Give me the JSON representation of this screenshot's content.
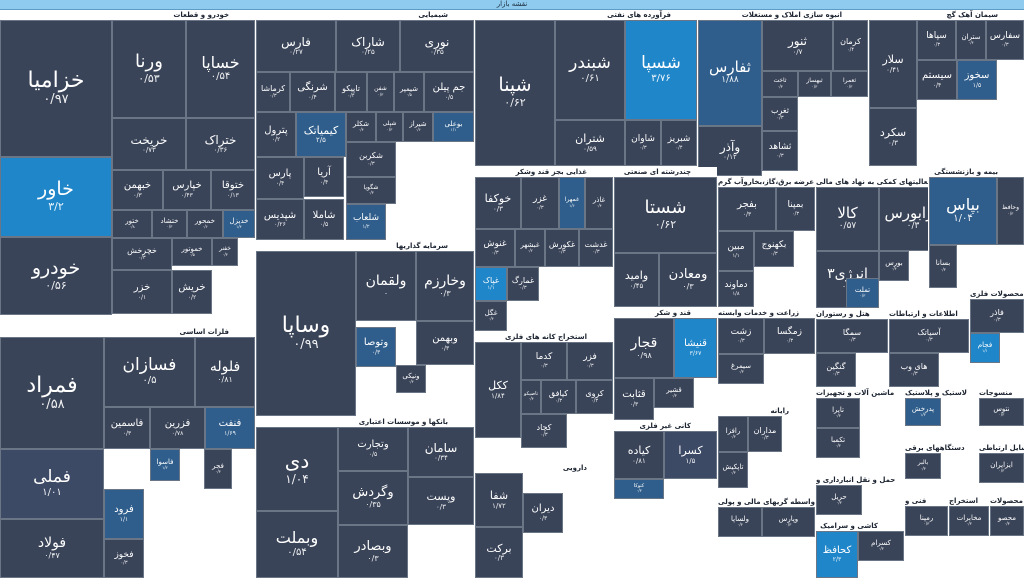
{
  "window": {
    "title": "نقشه بازار"
  },
  "colors": {
    "neutral": "#3a4458",
    "up_small": "#3d4a66",
    "up_medium": "#2f5e8c",
    "up_large": "#1f86c9"
  },
  "sectors": [
    {
      "id": "auto",
      "title": "خودرو و قطعات",
      "tiles": [
        {
          "name": "خزامیا",
          "value": "۰/۹۷",
          "level": "neutral"
        },
        {
          "name": "خاور",
          "value": "۳/۲",
          "level": "up3"
        },
        {
          "name": "خودرو",
          "value": "۰/۵۶",
          "level": "neutral"
        },
        {
          "name": "ورنا",
          "value": "۰/۵۳",
          "level": "neutral"
        },
        {
          "name": "خساپا",
          "value": "۰/۵۴",
          "level": "neutral"
        },
        {
          "name": "خریخت",
          "value": "۰/۷۳",
          "level": "neutral"
        },
        {
          "name": "ختراک",
          "value": "۰/۳۶",
          "level": "neutral"
        },
        {
          "name": "خبهمن",
          "value": "۰/۳",
          "level": "neutral"
        },
        {
          "name": "خپارس",
          "value": "۰/۴۳",
          "level": "neutral"
        },
        {
          "name": "ختوقا",
          "value": "۰/۱۳",
          "level": "neutral"
        },
        {
          "name": "ختور",
          "value": "۰/۸",
          "level": "neutral"
        },
        {
          "name": "ختشاد",
          "value": "۰/۳",
          "level": "neutral"
        },
        {
          "name": "خمحور",
          "value": "۰/۶",
          "level": "neutral"
        },
        {
          "name": "خدیزل",
          "value": "۱/۴",
          "level": "up2"
        },
        {
          "name": "خچرخش",
          "value": "۰/۳",
          "level": "neutral"
        },
        {
          "name": "خموتور",
          "value": "۰/۵",
          "level": "neutral"
        },
        {
          "name": "خفنر",
          "value": "۰/۳",
          "level": "neutral"
        },
        {
          "name": "خزر",
          "value": "۰/۱",
          "level": "neutral"
        },
        {
          "name": "خریش",
          "value": "۰/۲",
          "level": "neutral"
        }
      ]
    },
    {
      "id": "chem",
      "title": "شیمیایی",
      "tiles": [
        {
          "name": "فارس",
          "value": "۰/۲۷",
          "level": "neutral"
        },
        {
          "name": "شاراک",
          "value": "۰/۲۵",
          "level": "neutral"
        },
        {
          "name": "نوری",
          "value": "۰/۳۵",
          "level": "neutral"
        },
        {
          "name": "کرماشا",
          "value": "۰/۳",
          "level": "neutral"
        },
        {
          "name": "شرنگی",
          "value": "۰/۴",
          "level": "neutral"
        },
        {
          "name": "تاپیکو",
          "value": "۰/۴",
          "level": "neutral"
        },
        {
          "name": "شفن",
          "value": "۰/۳",
          "level": "neutral"
        },
        {
          "name": "شیمپر",
          "value": "۰/۵",
          "level": "neutral"
        },
        {
          "name": "جم پیلن",
          "value": "۰/۵",
          "level": "neutral"
        },
        {
          "name": "پترول",
          "value": "۰/۲",
          "level": "neutral"
        },
        {
          "name": "کیمیاتک",
          "value": "۲/۵",
          "level": "up2"
        },
        {
          "name": "شکلر",
          "value": "۰/۴",
          "level": "neutral"
        },
        {
          "name": "شپلی",
          "value": "۰/۳",
          "level": "neutral"
        },
        {
          "name": "شیراز",
          "value": "۰/۶",
          "level": "neutral"
        },
        {
          "name": "بوعلی",
          "value": "۱/۱",
          "level": "up2"
        },
        {
          "name": "پارس",
          "value": "۰/۴",
          "level": "neutral"
        },
        {
          "name": "آریا",
          "value": "۰/۴",
          "level": "neutral"
        },
        {
          "name": "شکربن",
          "value": "۰/۳",
          "level": "neutral"
        },
        {
          "name": "شگویا",
          "value": "۰/۳",
          "level": "neutral"
        },
        {
          "name": "شپدیس",
          "value": "۰/۲۶",
          "level": "neutral"
        },
        {
          "name": "شاملا",
          "value": "۰/۵",
          "level": "neutral"
        },
        {
          "name": "شلعاب",
          "value": "۱/۲",
          "level": "up2"
        }
      ]
    },
    {
      "id": "refinery",
      "title": "فرآورده های نفتی",
      "tiles": [
        {
          "name": "شپنا",
          "value": "۰/۶۲",
          "level": "neutral"
        },
        {
          "name": "شبندر",
          "value": "۰/۶۱",
          "level": "neutral"
        },
        {
          "name": "شسپا",
          "value": "۳/۷۶",
          "level": "up3"
        },
        {
          "name": "شتران",
          "value": "۰/۵۹",
          "level": "neutral"
        },
        {
          "name": "شاوان",
          "value": "۰/۳",
          "level": "neutral"
        },
        {
          "name": "شبریز",
          "value": "۰/۴",
          "level": "neutral"
        }
      ]
    },
    {
      "id": "realestate",
      "title": "انبوه سازی املاک و مستغلات",
      "tiles": [
        {
          "name": "ثفارس",
          "value": "۱/۸۸",
          "level": "up2"
        },
        {
          "name": "ثنور",
          "value": "۰/۷",
          "level": "neutral"
        },
        {
          "name": "کرمان",
          "value": "۰/۴",
          "level": "neutral"
        },
        {
          "name": "وآذر",
          "value": "۰/۱۲",
          "level": "neutral"
        },
        {
          "name": "ثاخت",
          "value": "۰/۳",
          "level": "neutral"
        },
        {
          "name": "ثبهساز",
          "value": "۰/۳",
          "level": "neutral"
        },
        {
          "name": "ثعمرا",
          "value": "۰/۳",
          "level": "neutral"
        },
        {
          "name": "ثغرب",
          "value": "۰/۳",
          "level": "neutral"
        },
        {
          "name": "ثشاهد",
          "value": "۰/۳",
          "level": "neutral"
        }
      ]
    },
    {
      "id": "cement",
      "title": "سیمان آهک گچ",
      "tiles": [
        {
          "name": "سلار",
          "value": "۰/۴۱",
          "level": "neutral"
        },
        {
          "name": "سپاها",
          "value": "۰/۳",
          "level": "neutral"
        },
        {
          "name": "ستران",
          "value": "۰/۴",
          "level": "neutral"
        },
        {
          "name": "سفارس",
          "value": "۰/۳",
          "level": "neutral"
        },
        {
          "name": "سکرد",
          "value": "۰/۳",
          "level": "neutral"
        },
        {
          "name": "سیستم",
          "value": "۰/۴",
          "level": "neutral"
        },
        {
          "name": "سصفها",
          "value": "۰/۳",
          "level": "neutral"
        },
        {
          "name": "سخوز",
          "value": "۱/۵",
          "level": "up2"
        }
      ]
    },
    {
      "id": "food",
      "title": "غذایی بجز قند وشکر",
      "tiles": [
        {
          "name": "خوکفا",
          "value": "۰/۳",
          "level": "neutral"
        },
        {
          "name": "غزر",
          "value": "۰/۳",
          "level": "neutral"
        },
        {
          "name": "غمهرا",
          "value": "۱/۶",
          "level": "up2"
        },
        {
          "name": "غاذر",
          "value": "۰/۴",
          "level": "neutral"
        },
        {
          "name": "غنوش",
          "value": "۰/۳",
          "level": "neutral"
        },
        {
          "name": "غبشهر",
          "value": "۰/۲",
          "level": "neutral"
        },
        {
          "name": "غکورش",
          "value": "۰/۳",
          "level": "neutral"
        },
        {
          "name": "غدشت",
          "value": "۰/۳",
          "level": "neutral"
        },
        {
          "name": "غپاک",
          "value": "۱/۱",
          "level": "up3"
        },
        {
          "name": "غمارگ",
          "value": "۰/۳",
          "level": "neutral"
        },
        {
          "name": "غگل",
          "value": "۰/۴",
          "level": "neutral"
        }
      ]
    },
    {
      "id": "multi",
      "title": "چندرشته ای صنعتی",
      "tiles": [
        {
          "name": "شستا",
          "value": "۰/۶۲",
          "level": "neutral"
        },
        {
          "name": "وامید",
          "value": "۰/۴۵",
          "level": "neutral"
        },
        {
          "name": "ومعادن",
          "value": "۰/۳",
          "level": "neutral"
        }
      ]
    },
    {
      "id": "utility",
      "title": "عرضه برق،گاز،بخاروآب گرم",
      "tiles": [
        {
          "name": "بفجر",
          "value": "۰/۳",
          "level": "neutral"
        },
        {
          "name": "بمپنا",
          "value": "۰/۳",
          "level": "neutral"
        },
        {
          "name": "مبین",
          "value": "۱/۱",
          "level": "neutral"
        },
        {
          "name": "بکهنوج",
          "value": "۰/۳",
          "level": "neutral"
        },
        {
          "name": "دماوند",
          "value": "۱/۸",
          "level": "neutral"
        }
      ]
    },
    {
      "id": "finance",
      "title": "فعالیتهای کمکی به نهاد های مالی",
      "tiles": [
        {
          "name": "کالا",
          "value": "۰/۵۷",
          "level": "neutral"
        },
        {
          "name": "فرابورس",
          "value": "۰/۳",
          "level": "neutral"
        },
        {
          "name": "بورس",
          "value": "۰/۴",
          "level": "neutral"
        },
        {
          "name": "انرژی۳",
          "value": "۰/۳",
          "level": "neutral"
        },
        {
          "name": "تملت",
          "value": "۰/۳",
          "level": "up2"
        }
      ]
    },
    {
      "id": "insurance",
      "title": "بیمه و بازنشستگی",
      "tiles": [
        {
          "name": "بپاس",
          "value": "۱/۰۴",
          "level": "up2"
        },
        {
          "name": "وحافظ",
          "value": "۰/۳",
          "level": "neutral"
        },
        {
          "name": "بسانا",
          "value": "۰/۳",
          "level": "neutral"
        }
      ]
    },
    {
      "id": "invest",
      "title": "سرمایه گذاریها",
      "tiles": [
        {
          "name": "وساپا",
          "value": "۰/۹۹",
          "level": "neutral"
        },
        {
          "name": "ولقمان",
          "value": "۰",
          "level": "neutral"
        },
        {
          "name": "وخارزم",
          "value": "۰/۳",
          "level": "neutral"
        },
        {
          "name": "وبهمن",
          "value": "۰/۳",
          "level": "neutral"
        },
        {
          "name": "ونیکی",
          "value": "۰/۴",
          "level": "neutral"
        },
        {
          "name": "وتوصا",
          "value": "۰/۳",
          "level": "up2"
        }
      ]
    },
    {
      "id": "metals",
      "title": "فلزات اساسی",
      "tiles": [
        {
          "name": "فمراد",
          "value": "۰/۵۸",
          "level": "neutral"
        },
        {
          "name": "فملی",
          "value": "۱/۰۱",
          "level": "up1"
        },
        {
          "name": "فولاد",
          "value": "۰/۴۷",
          "level": "neutral"
        },
        {
          "name": "فسازان",
          "value": "۰/۵",
          "level": "neutral"
        },
        {
          "name": "فلوله",
          "value": "۰/۸۱",
          "level": "neutral"
        },
        {
          "name": "فنفت",
          "value": "۱/۶۹",
          "level": "up2"
        },
        {
          "name": "فزرین",
          "value": "۰/۷۸",
          "level": "neutral"
        },
        {
          "name": "فاسمین",
          "value": "۰/۳",
          "level": "neutral"
        },
        {
          "name": "فاسوا",
          "value": "۱/۲",
          "level": "up2"
        },
        {
          "name": "فجر",
          "value": "۰/۳",
          "level": "neutral"
        },
        {
          "name": "فرود",
          "value": "۱/۱",
          "level": "up2"
        },
        {
          "name": "فخوز",
          "value": "۰/۳",
          "level": "neutral"
        }
      ]
    },
    {
      "id": "banks",
      "title": "بانکها و موسسات اعتباری",
      "tiles": [
        {
          "name": "دی",
          "value": "۱/۰۴",
          "level": "neutral"
        },
        {
          "name": "وتجارت",
          "value": "۰/۵",
          "level": "neutral"
        },
        {
          "name": "سامان",
          "value": "۰/۳۴",
          "level": "neutral"
        },
        {
          "name": "وگردش",
          "value": "۰/۳۵",
          "level": "neutral"
        },
        {
          "name": "وبملت",
          "value": "۰/۵۴",
          "level": "neutral"
        },
        {
          "name": "وبصادر",
          "value": "۰/۳",
          "level": "neutral"
        },
        {
          "name": "وپست",
          "value": "۰/۳",
          "level": "neutral"
        }
      ]
    },
    {
      "id": "mining",
      "title": "استخراج کانه های فلزی",
      "tiles": [
        {
          "name": "ککل",
          "value": "۱/۸۴",
          "level": "neutral"
        },
        {
          "name": "کدما",
          "value": "۰/۳",
          "level": "neutral"
        },
        {
          "name": "فزر",
          "value": "۰/۳",
          "level": "neutral"
        },
        {
          "name": "کیافق",
          "value": "۰/۳",
          "level": "neutral"
        },
        {
          "name": "کروی",
          "value": "۰/۳",
          "level": "neutral"
        },
        {
          "name": "کچاد",
          "value": "۰/۳",
          "level": "neutral"
        },
        {
          "name": "تاصیکو",
          "value": "۰/۴",
          "level": "neutral"
        }
      ]
    },
    {
      "id": "sugar",
      "title": "قند و شکر",
      "tiles": [
        {
          "name": "قجار",
          "value": "۰/۹۸",
          "level": "neutral"
        },
        {
          "name": "قنیشا",
          "value": "۳/۶۷",
          "level": "up3"
        },
        {
          "name": "قثابت",
          "value": "۰/۳",
          "level": "neutral"
        },
        {
          "name": "قشیر",
          "value": "۰/۳",
          "level": "neutral"
        }
      ]
    },
    {
      "id": "pharma",
      "title": "دارویی",
      "tiles": [
        {
          "name": "شفا",
          "value": "۱/۷۲",
          "level": "neutral"
        },
        {
          "name": "برکت",
          "value": "۰/۳",
          "level": "neutral"
        },
        {
          "name": "دیران",
          "value": "۰/۳",
          "level": "neutral"
        }
      ]
    },
    {
      "id": "nonmetal",
      "title": "کانی غیر فلزی",
      "tiles": [
        {
          "name": "کیاده",
          "value": "۰/۸۱",
          "level": "neutral"
        },
        {
          "name": "کسرا",
          "value": "۱/۵",
          "level": "up1"
        },
        {
          "name": "کتوکا",
          "value": "۰/۳",
          "level": "up2"
        }
      ]
    },
    {
      "id": "agri",
      "title": "زراعت و خدمات وابسته",
      "tiles": [
        {
          "name": "زشت",
          "value": "۰/۳",
          "level": "neutral"
        },
        {
          "name": "زمگسا",
          "value": "۰/۳",
          "level": "neutral"
        },
        {
          "name": "سیمرغ",
          "value": "۰/۳",
          "level": "neutral"
        }
      ]
    },
    {
      "id": "hotel",
      "title": "هتل و رستوران",
      "tiles": [
        {
          "name": "سمگا",
          "value": "۰/۳",
          "level": "neutral"
        },
        {
          "name": "گنگین",
          "value": "۰/۳",
          "level": "neutral"
        }
      ]
    },
    {
      "id": "it",
      "title": "اطلاعات و ارتباطات",
      "tiles": [
        {
          "name": "آسیاتک",
          "value": "۰/۳",
          "level": "neutral"
        },
        {
          "name": "های وب",
          "value": "۰/۳",
          "level": "neutral"
        }
      ]
    },
    {
      "id": "products",
      "title": "محصولات فلزی",
      "tiles": [
        {
          "name": "فاذر",
          "value": "۰/۳",
          "level": "neutral"
        },
        {
          "name": "فجام",
          "value": "۱/۱",
          "level": "up3"
        }
      ]
    },
    {
      "id": "computer",
      "title": "رایانه",
      "tiles": [
        {
          "name": "رافزا",
          "value": "۰/۳",
          "level": "neutral"
        },
        {
          "name": "مداران",
          "value": "۰/۳",
          "level": "neutral"
        },
        {
          "name": "تاپکیش",
          "value": "۰/۳",
          "level": "neutral"
        }
      ]
    },
    {
      "id": "machines",
      "title": "ماشین آلات و تجهیزات",
      "tiles": [
        {
          "name": "تایرا",
          "value": "۰/۳",
          "level": "neutral"
        },
        {
          "name": "تکمبا",
          "value": "۰/۳",
          "level": "neutral"
        }
      ]
    },
    {
      "id": "plastic",
      "title": "لاستیک و پلاستیک",
      "tiles": [
        {
          "name": "پدرخش",
          "value": "۱/۳",
          "level": "up2"
        }
      ]
    },
    {
      "id": "textile",
      "title": "منسوجات",
      "tiles": [
        {
          "name": "نتوس",
          "value": "۰/۳",
          "level": "neutral"
        }
      ]
    },
    {
      "id": "transport",
      "title": "حمل و نقل انبارداری و",
      "tiles": [
        {
          "name": "حریل",
          "value": "۰/۳",
          "level": "neutral"
        }
      ]
    },
    {
      "id": "electric",
      "title": "دستگاههای برقی",
      "tiles": [
        {
          "name": "بالبر",
          "value": "۰/۳",
          "level": "neutral"
        }
      ]
    },
    {
      "id": "telecom",
      "title": "وسایل ارتباطی",
      "tiles": [
        {
          "name": "ایزایران",
          "value": "۰/۳",
          "level": "neutral"
        }
      ]
    },
    {
      "id": "brokers",
      "title": "واسطه گریهای مالی و پولی",
      "tiles": [
        {
          "name": "ولساپا",
          "value": "۰/۳",
          "level": "neutral"
        },
        {
          "name": "وپارس",
          "value": "۰/۳",
          "level": "neutral"
        }
      ]
    },
    {
      "id": "ceramic",
      "title": "کاشی و سرامیک",
      "tiles": [
        {
          "name": "کحافظ",
          "value": "۲/۳",
          "level": "up3"
        },
        {
          "name": "کسرام",
          "value": "۰/۳",
          "level": "neutral"
        }
      ]
    },
    {
      "id": "engineering",
      "title": "فنی و",
      "tiles": [
        {
          "name": "رمپنا",
          "value": "۰/۳",
          "level": "neutral"
        }
      ]
    },
    {
      "id": "extract",
      "title": "استخراج",
      "tiles": [
        {
          "name": "مخابرات",
          "value": "۰/۳",
          "level": "neutral"
        }
      ]
    },
    {
      "id": "misc",
      "title": "محصولات",
      "tiles": [
        {
          "name": "محصو",
          "value": "۰/۳",
          "level": "neutral"
        }
      ]
    }
  ]
}
